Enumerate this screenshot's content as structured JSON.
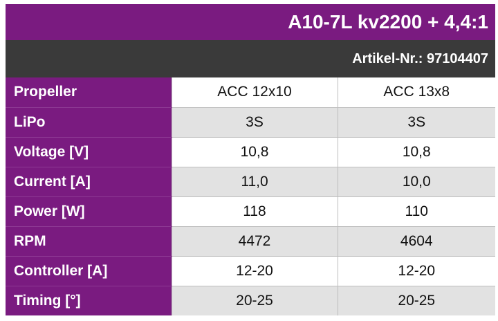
{
  "header": {
    "title": "A10-7L kv2200 + 4,4:1",
    "article": "Artikel-Nr.: 97104407"
  },
  "colors": {
    "accent": "#7a1b80",
    "dark_bar": "#3a3a3a",
    "alt_row": "#e2e2e2"
  },
  "rows": [
    {
      "label": "Propeller",
      "values": [
        "ACC 12x10",
        "ACC 13x8"
      ]
    },
    {
      "label": "LiPo",
      "values": [
        "3S",
        "3S"
      ]
    },
    {
      "label": "Voltage [V]",
      "values": [
        "10,8",
        "10,8"
      ]
    },
    {
      "label": "Current [A]",
      "values": [
        "11,0",
        "10,0"
      ]
    },
    {
      "label": "Power [W]",
      "values": [
        "118",
        "110"
      ]
    },
    {
      "label": "RPM",
      "values": [
        "4472",
        "4604"
      ]
    },
    {
      "label": "Controller [A]",
      "values": [
        "12-20",
        "12-20"
      ]
    },
    {
      "label": "Timing [°]",
      "values": [
        "20-25",
        "20-25"
      ]
    }
  ]
}
